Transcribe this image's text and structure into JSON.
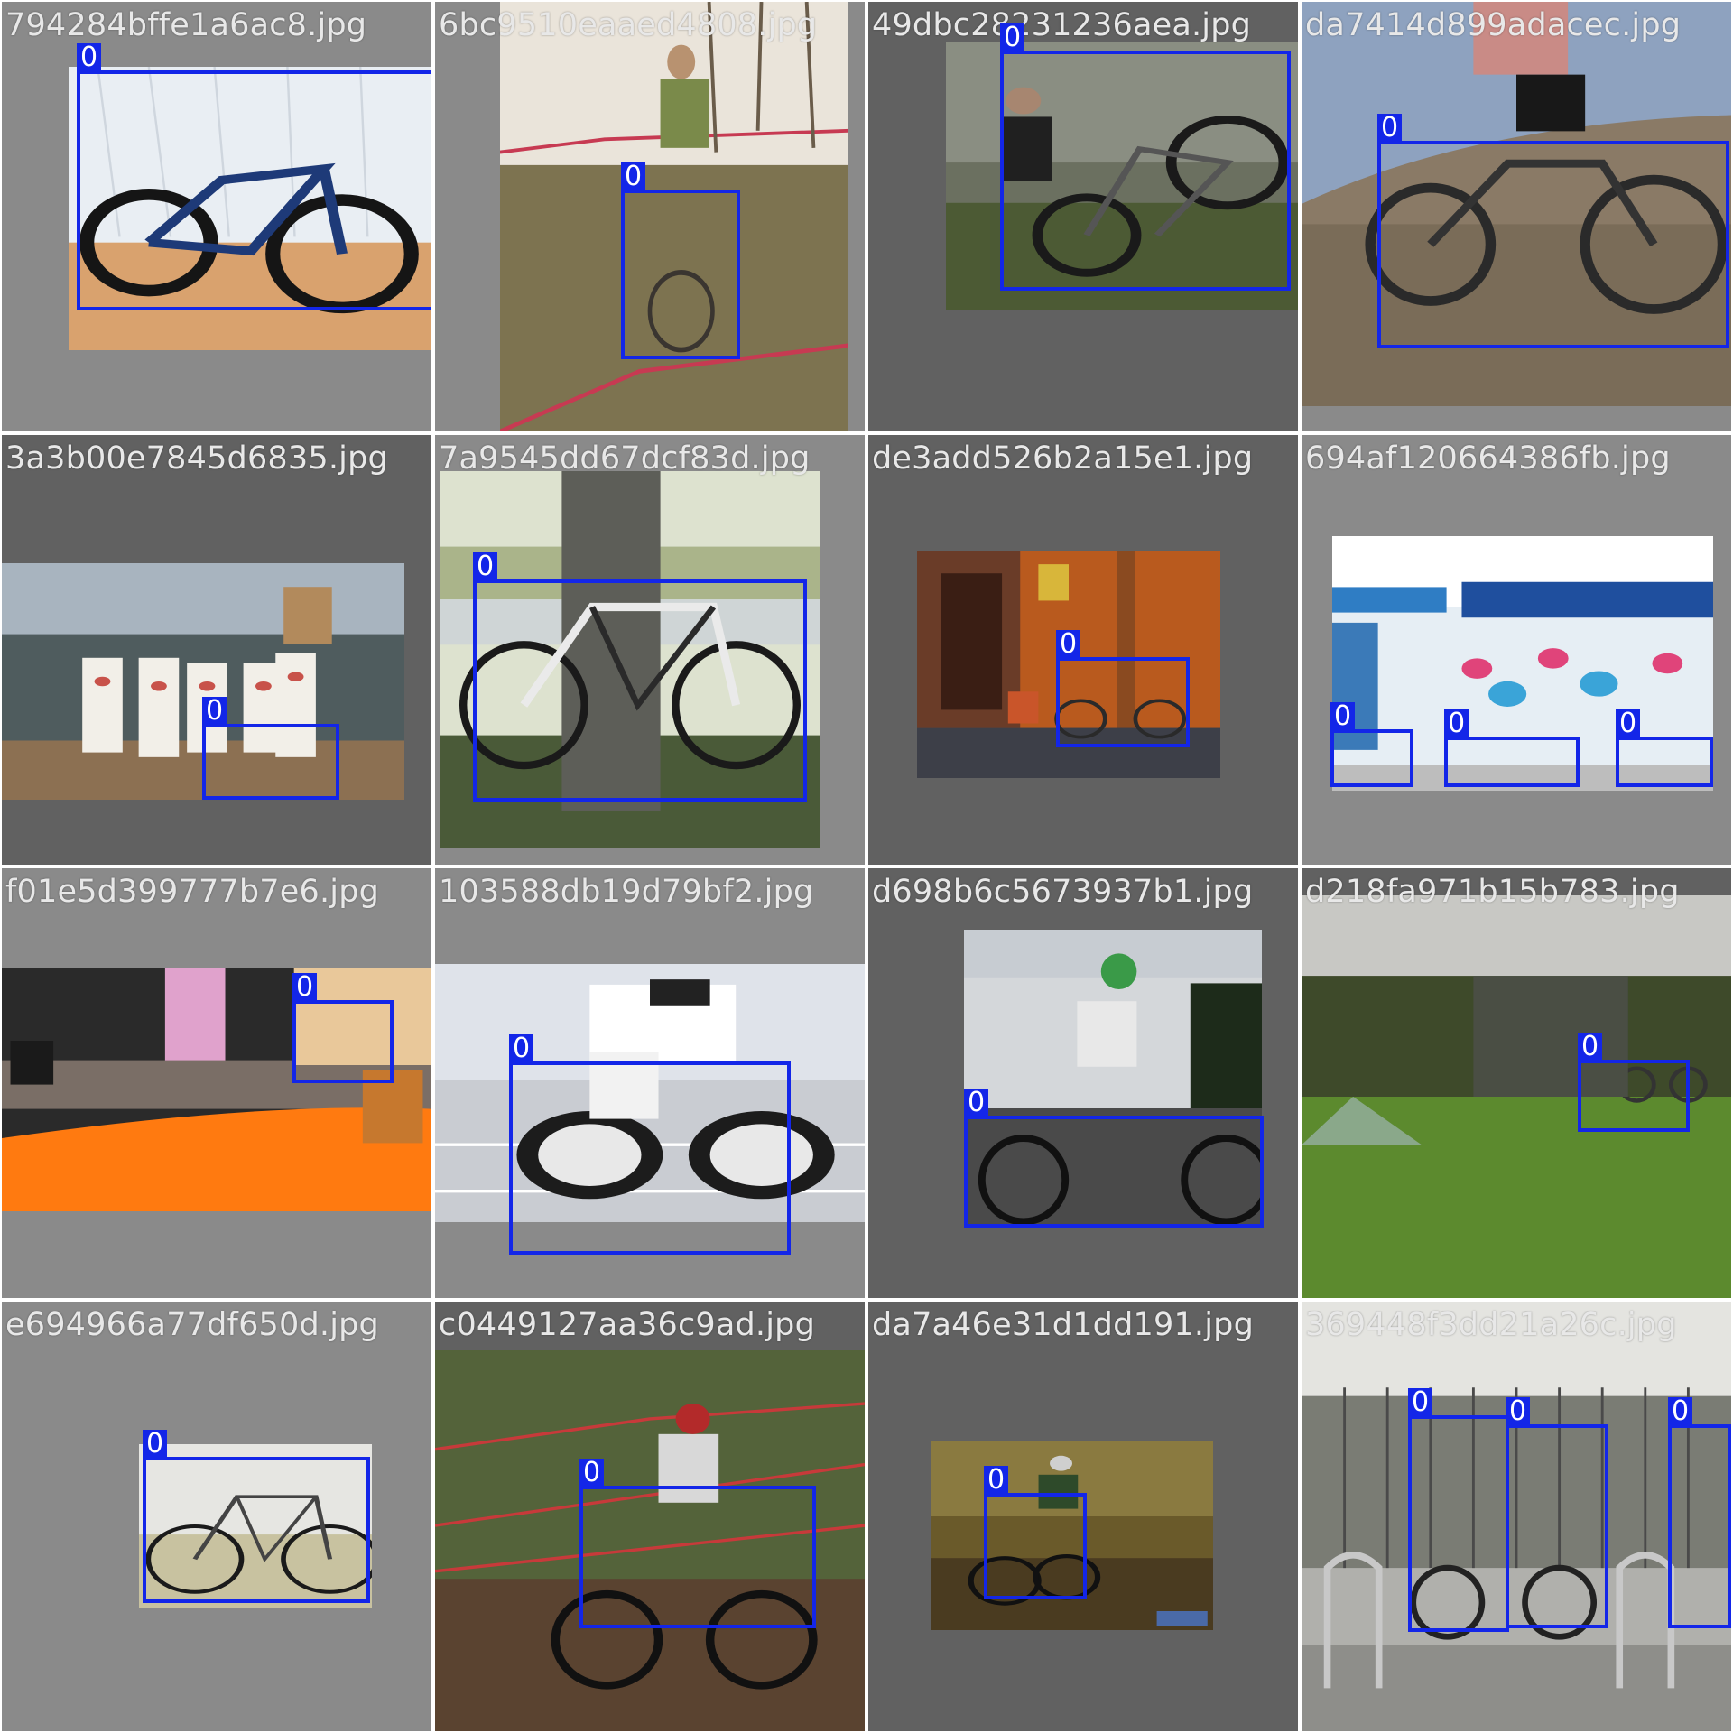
{
  "colors": {
    "box": "#1326e8",
    "label_text": "#ffffff",
    "filename_text": "#e8e8e8"
  },
  "tiles": [
    {
      "filename": "794284bffe1a6ac8.jpg",
      "boxes": [
        {
          "label": "0"
        }
      ]
    },
    {
      "filename": "6bc9510eaaed4808.jpg",
      "boxes": [
        {
          "label": "0"
        }
      ]
    },
    {
      "filename": "49dbc28231236aea.jpg",
      "boxes": [
        {
          "label": "0"
        }
      ]
    },
    {
      "filename": "da7414d899adacec.jpg",
      "boxes": [
        {
          "label": "0"
        }
      ]
    },
    {
      "filename": "3a3b00e7845d6835.jpg",
      "boxes": [
        {
          "label": "0"
        }
      ]
    },
    {
      "filename": "7a9545dd67dcf83d.jpg",
      "boxes": [
        {
          "label": "0"
        }
      ]
    },
    {
      "filename": "de3add526b2a15e1.jpg",
      "boxes": [
        {
          "label": "0"
        }
      ]
    },
    {
      "filename": "694af120664386fb.jpg",
      "boxes": [
        {
          "label": "0"
        },
        {
          "label": "0"
        },
        {
          "label": "0"
        }
      ]
    },
    {
      "filename": "f01e5d399777b7e6.jpg",
      "boxes": [
        {
          "label": "0"
        }
      ]
    },
    {
      "filename": "103588db19d79bf2.jpg",
      "boxes": [
        {
          "label": "0"
        }
      ]
    },
    {
      "filename": "d698b6c5673937b1.jpg",
      "boxes": [
        {
          "label": "0"
        }
      ]
    },
    {
      "filename": "d218fa971b15b783.jpg",
      "boxes": [
        {
          "label": "0"
        }
      ]
    },
    {
      "filename": "e694966a77df650d.jpg",
      "boxes": [
        {
          "label": "0"
        }
      ]
    },
    {
      "filename": "c0449127aa36c9ad.jpg",
      "boxes": [
        {
          "label": "0"
        }
      ]
    },
    {
      "filename": "da7a46e31d1dd191.jpg",
      "boxes": [
        {
          "label": "0"
        }
      ]
    },
    {
      "filename": "369448f3dd21a26c.jpg",
      "boxes": [
        {
          "label": "0"
        },
        {
          "label": "0"
        },
        {
          "label": "0"
        }
      ]
    }
  ]
}
